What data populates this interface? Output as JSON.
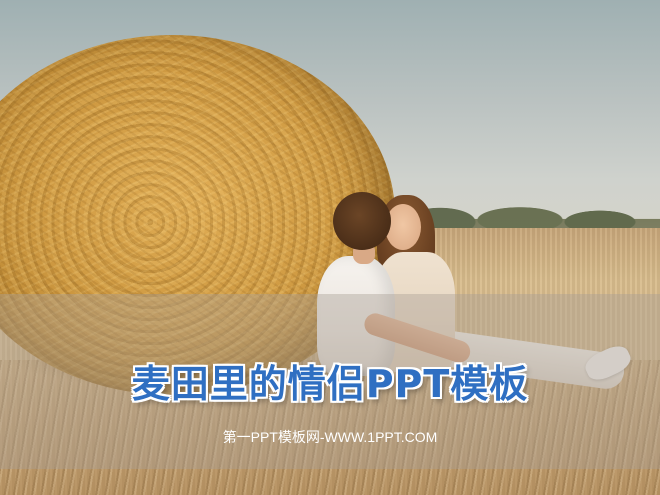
{
  "slide": {
    "title": "麦田里的情侣PPT模板",
    "subtitle": "第一PPT模板网-WWW.1PPT.COM"
  },
  "colors": {
    "title_fill": "#2f6fc2",
    "title_outline": "#ffffff",
    "band": "rgba(170,160,150,0.42)"
  }
}
